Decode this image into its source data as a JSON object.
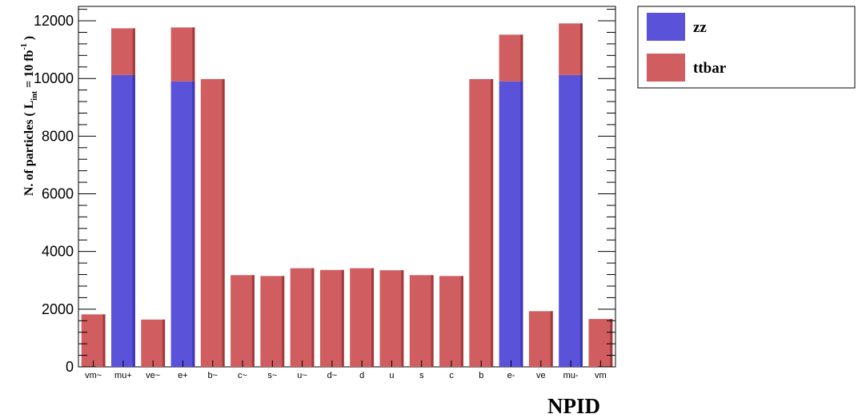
{
  "chart_data": {
    "type": "bar",
    "stacked": true,
    "categories": [
      "vm~",
      "mu+",
      "ve~",
      "e+",
      "b~",
      "c~",
      "s~",
      "u~",
      "d~",
      "d",
      "u",
      "s",
      "c",
      "b",
      "e-",
      "ve",
      "mu-",
      "vm"
    ],
    "series": [
      {
        "name": "zz",
        "color": "#5a52d9",
        "values": [
          0,
          10120,
          0,
          9900,
          0,
          0,
          0,
          0,
          0,
          0,
          0,
          0,
          0,
          0,
          9900,
          0,
          10120,
          0
        ]
      },
      {
        "name": "ttbar",
        "color": "#d05d5f",
        "values": [
          1820,
          1620,
          1640,
          1870,
          9980,
          3180,
          3150,
          3420,
          3360,
          3420,
          3350,
          3180,
          3150,
          9980,
          1620,
          1930,
          1790,
          1660
        ]
      }
    ],
    "xlabel": "NPID",
    "ylabel_prefix": "N. of particles ( L",
    "ylabel_sub": "int",
    "ylabel_mid": " = 10 fb",
    "ylabel_sup": "-1",
    "ylabel_suffix": " )",
    "yticks": [
      "0",
      "2000",
      "4000",
      "6000",
      "8000",
      "10000",
      "12000"
    ],
    "ylim": [
      0,
      12500
    ],
    "grid": false,
    "legend_position": "top-right"
  }
}
